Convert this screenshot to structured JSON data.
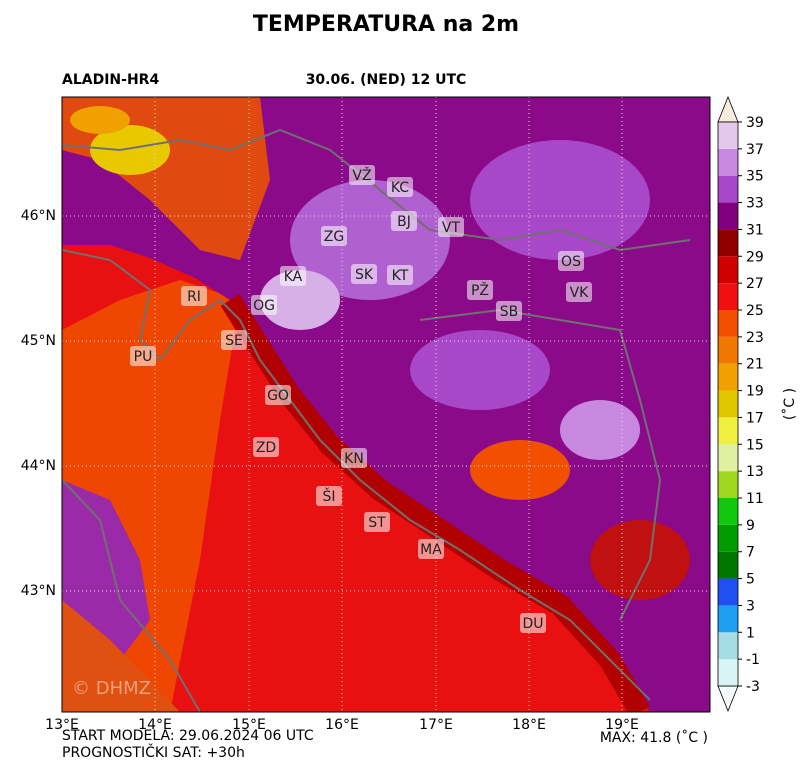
{
  "title": "TEMPERATURA na 2m",
  "model": "ALADIN-HR4",
  "valid_time": "30.06. (NED) 12 UTC",
  "lon_ticks": [
    "13°E",
    "14°E",
    "15°E",
    "16°E",
    "17°E",
    "18°E",
    "19°E"
  ],
  "lat_ticks": [
    "46°N",
    "45°N",
    "44°N",
    "43°N"
  ],
  "cities": [
    "VŽ",
    "KC",
    "BJ",
    "VT",
    "ZG",
    "OS",
    "KA",
    "SK",
    "KT",
    "PŽ",
    "VK",
    "RI",
    "OG",
    "SB",
    "SE",
    "PU",
    "GO",
    "ZD",
    "KN",
    "ŠI",
    "ST",
    "MA",
    "DU"
  ],
  "watermark": "© DHMZ",
  "colorbar": {
    "ticks": [
      -3,
      -1,
      1,
      3,
      5,
      7,
      9,
      11,
      13,
      15,
      17,
      19,
      21,
      23,
      25,
      27,
      29,
      31,
      33,
      35,
      37,
      39
    ],
    "colors": [
      "#d8f4f4",
      "#a8dce4",
      "#1ea0f0",
      "#2050f0",
      "#007800",
      "#009c00",
      "#10c810",
      "#a0d820",
      "#e0f0a0",
      "#f0f040",
      "#e0c800",
      "#f0a000",
      "#f07800",
      "#f05000",
      "#f01010",
      "#d00000",
      "#900000",
      "#800080",
      "#a848c8",
      "#c888e0",
      "#e4c8ec"
    ],
    "under_color": "#f4fcfc",
    "over_color": "#f8ecdc",
    "unit": "(˚C )"
  },
  "footer": {
    "start": "START MODELA: 29.06.2024 06 UTC",
    "lead": "PROGNOSTIČKI SAT: +30h",
    "max": "MAX: 41.8 (˚C )"
  }
}
